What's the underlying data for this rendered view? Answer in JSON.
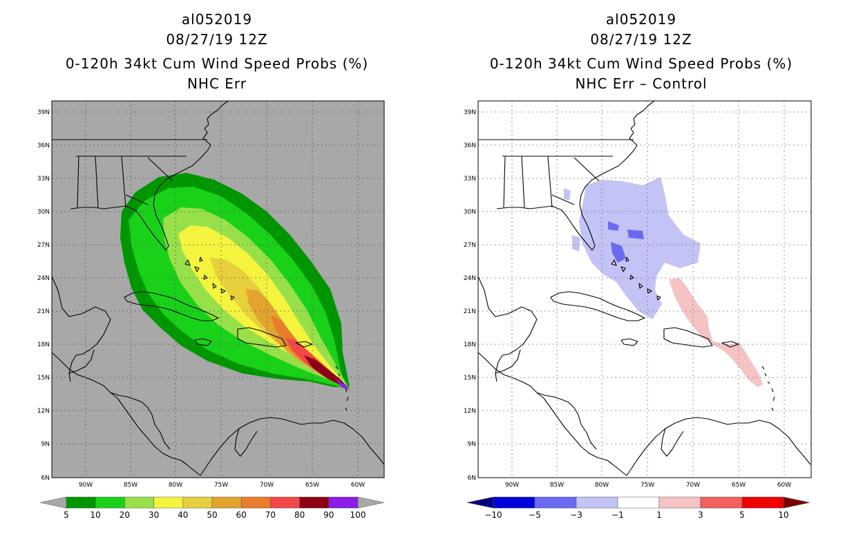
{
  "left_panel": {
    "storm_id": "al052019",
    "datetime": "08/27/19 12Z",
    "product": "0-120h 34kt Cum Wind Speed Probs (%)",
    "subtitle": "NHC Err",
    "background_color": "#a8a8a8",
    "colorbar": {
      "labels": [
        "5",
        "10",
        "20",
        "30",
        "40",
        "50",
        "60",
        "70",
        "80",
        "90",
        "100"
      ],
      "colors": [
        "#009600",
        "#19d119",
        "#97e04a",
        "#f4f43f",
        "#e8cf3d",
        "#e2a42e",
        "#e67e2c",
        "#f24848",
        "#8b0012",
        "#8c1ce8"
      ],
      "under_color": "#a8a8a8",
      "over_color": "#a8a8a8"
    }
  },
  "right_panel": {
    "storm_id": "al052019",
    "datetime": "08/27/19 12Z",
    "product": "0-120h 34kt Cum Wind Speed Probs (%)",
    "subtitle": "NHC Err – Control",
    "background_color": "#ffffff",
    "colorbar": {
      "labels": [
        "−10",
        "−5",
        "−3",
        "−1",
        "1",
        "3",
        "5",
        "10"
      ],
      "colors": [
        "#0000d8",
        "#6a6af0",
        "#c3c3f5",
        "#ffffff",
        "#f5c3c3",
        "#f26060",
        "#ee0000"
      ],
      "under_color": "#000080",
      "over_color": "#7a0000"
    }
  },
  "axes": {
    "lat_labels": [
      "39N",
      "36N",
      "33N",
      "30N",
      "27N",
      "24N",
      "21N",
      "18N",
      "15N",
      "12N",
      "9N",
      "6N"
    ],
    "lon_labels": [
      "90W",
      "85W",
      "80W",
      "75W",
      "70W",
      "65W",
      "60W"
    ]
  }
}
